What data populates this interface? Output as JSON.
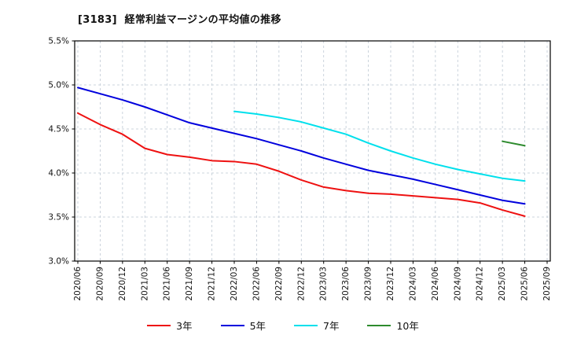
{
  "chart_data": {
    "type": "line",
    "title": "[3183]  経常利益マージンの平均値の推移",
    "xlabel": "",
    "ylabel": "",
    "ylim": [
      3.0,
      5.5
    ],
    "grid": "on",
    "grid_color": "#bfc9d4",
    "legend_position": "bottom",
    "x_labels": [
      "2020/06",
      "2020/09",
      "2020/12",
      "2021/03",
      "2021/06",
      "2021/09",
      "2021/12",
      "2022/03",
      "2022/06",
      "2022/09",
      "2022/12",
      "2023/03",
      "2023/06",
      "2023/09",
      "2023/12",
      "2024/03",
      "2024/06",
      "2024/09",
      "2024/12",
      "2025/03",
      "2025/06",
      "2025/09"
    ],
    "y_ticks": [
      {
        "value": 3.0,
        "label": "3.0%"
      },
      {
        "value": 3.5,
        "label": "3.5%"
      },
      {
        "value": 4.0,
        "label": "4.0%"
      },
      {
        "value": 4.5,
        "label": "4.5%"
      },
      {
        "value": 5.0,
        "label": "5.0%"
      },
      {
        "value": 5.5,
        "label": "5.5%"
      }
    ],
    "series": [
      {
        "name": "3年",
        "color": "#ee1111",
        "start_index": 0,
        "values": [
          4.68,
          4.55,
          4.44,
          4.28,
          4.21,
          4.18,
          4.14,
          4.13,
          4.1,
          4.02,
          3.92,
          3.84,
          3.8,
          3.77,
          3.76,
          3.74,
          3.72,
          3.7,
          3.66,
          3.58,
          3.51
        ]
      },
      {
        "name": "5年",
        "color": "#0000dd",
        "start_index": 0,
        "values": [
          4.97,
          4.9,
          4.83,
          4.75,
          4.66,
          4.57,
          4.51,
          4.45,
          4.39,
          4.32,
          4.25,
          4.17,
          4.1,
          4.03,
          3.98,
          3.93,
          3.87,
          3.81,
          3.75,
          3.69,
          3.65
        ]
      },
      {
        "name": "7年",
        "color": "#00e0ec",
        "start_index": 7,
        "values": [
          4.7,
          4.67,
          4.63,
          4.58,
          4.51,
          4.44,
          4.34,
          4.25,
          4.17,
          4.1,
          4.04,
          3.99,
          3.94,
          3.91
        ]
      },
      {
        "name": "10年",
        "color": "#2e8b2e",
        "start_index": 19,
        "values": [
          4.36,
          4.31
        ]
      }
    ]
  }
}
